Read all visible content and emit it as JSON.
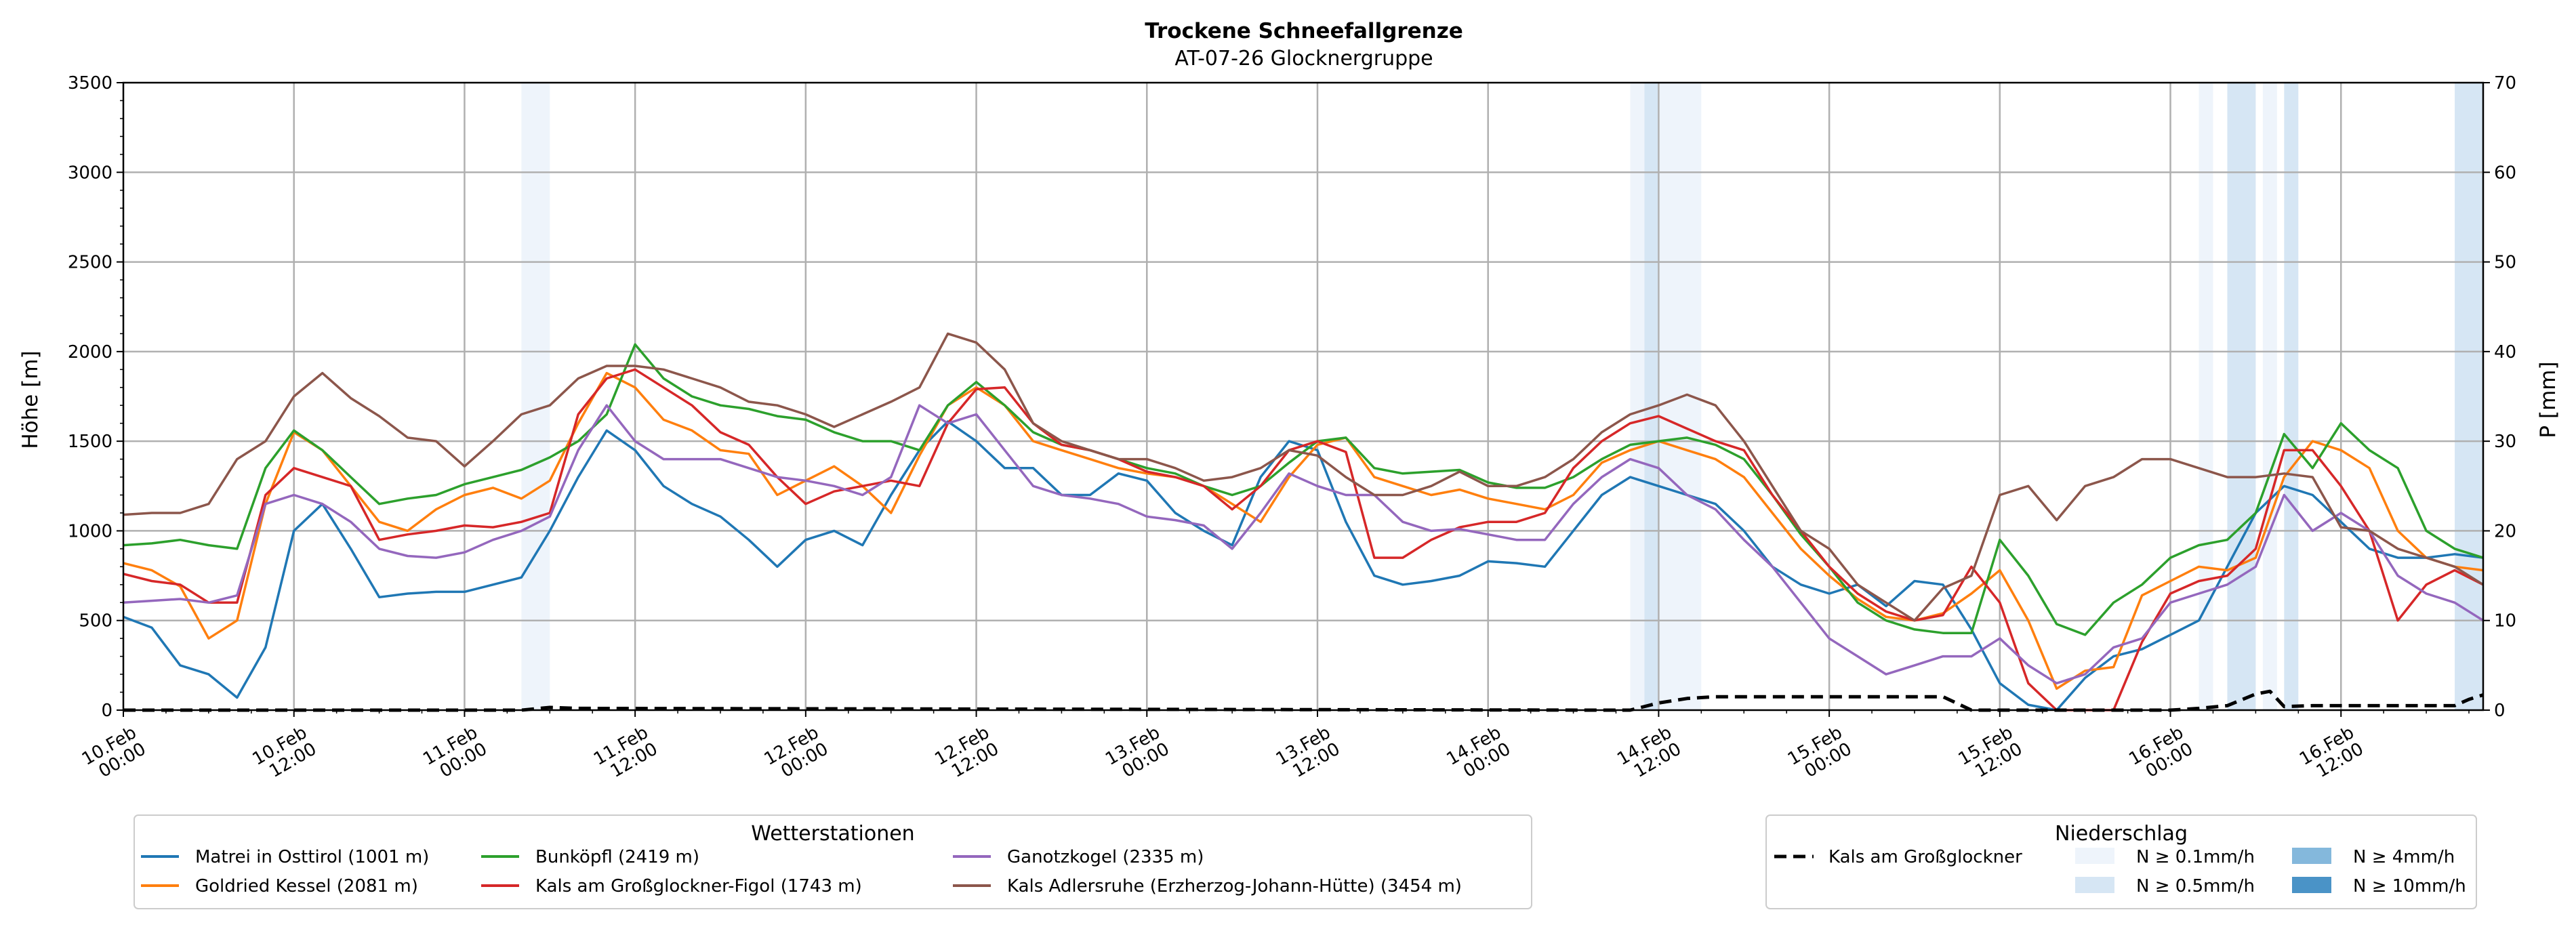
{
  "chart_data": {
    "type": "line",
    "title": "Trockene Schneefallgrenze",
    "subtitle": "AT-07-26 Glocknergruppe",
    "ylabel": "Höhe [m]",
    "y2label": "P [mm]",
    "ylim": [
      0,
      3500
    ],
    "y2lim": [
      0,
      70
    ],
    "yticks": [
      0,
      500,
      1000,
      1500,
      2000,
      2500,
      3000,
      3500
    ],
    "y2ticks": [
      0,
      10,
      20,
      30,
      40,
      50,
      60,
      70
    ],
    "x_range_hours": [
      0,
      166
    ],
    "xticks": [
      {
        "h": 0,
        "l1": "10.Feb",
        "l2": "00:00"
      },
      {
        "h": 12,
        "l1": "10.Feb",
        "l2": "12:00"
      },
      {
        "h": 24,
        "l1": "11.Feb",
        "l2": "00:00"
      },
      {
        "h": 36,
        "l1": "11.Feb",
        "l2": "12:00"
      },
      {
        "h": 48,
        "l1": "12.Feb",
        "l2": "00:00"
      },
      {
        "h": 60,
        "l1": "12.Feb",
        "l2": "12:00"
      },
      {
        "h": 72,
        "l1": "13.Feb",
        "l2": "00:00"
      },
      {
        "h": 84,
        "l1": "13.Feb",
        "l2": "12:00"
      },
      {
        "h": 96,
        "l1": "14.Feb",
        "l2": "00:00"
      },
      {
        "h": 108,
        "l1": "14.Feb",
        "l2": "12:00"
      },
      {
        "h": 120,
        "l1": "15.Feb",
        "l2": "00:00"
      },
      {
        "h": 132,
        "l1": "15.Feb",
        "l2": "12:00"
      },
      {
        "h": 144,
        "l1": "16.Feb",
        "l2": "00:00"
      },
      {
        "h": 156,
        "l1": "16.Feb",
        "l2": "12:00"
      }
    ],
    "precip_bands": [
      {
        "start": 28,
        "end": 30,
        "level": 0
      },
      {
        "start": 106,
        "end": 107,
        "level": 0
      },
      {
        "start": 107,
        "end": 108,
        "level": 1
      },
      {
        "start": 108,
        "end": 111,
        "level": 0
      },
      {
        "start": 146,
        "end": 147,
        "level": 0
      },
      {
        "start": 148,
        "end": 150,
        "level": 1
      },
      {
        "start": 150.5,
        "end": 151.5,
        "level": 0
      },
      {
        "start": 152,
        "end": 153,
        "level": 1
      },
      {
        "start": 164,
        "end": 166,
        "level": 1
      }
    ],
    "precip_colors": [
      "#eef4fb",
      "#d6e6f4",
      "#84b8dc",
      "#4a93c7"
    ],
    "series": [
      {
        "name": "Matrei in Osttirol (1001 m)",
        "color": "#1f77b4",
        "x": [
          0,
          2,
          4,
          6,
          8,
          10,
          12,
          14,
          16,
          18,
          20,
          22,
          24,
          26,
          28,
          30,
          32,
          34,
          36,
          38,
          40,
          42,
          44,
          46,
          48,
          50,
          52,
          54,
          56,
          58,
          60,
          62,
          64,
          66,
          68,
          70,
          72,
          74,
          76,
          78,
          80,
          82,
          84,
          86,
          88,
          90,
          92,
          94,
          96,
          98,
          100,
          102,
          104,
          106,
          108,
          110,
          112,
          114,
          116,
          118,
          120,
          122,
          124,
          126,
          128,
          130,
          132,
          134,
          136,
          138,
          140,
          142,
          144,
          146,
          148,
          150,
          152,
          154,
          156,
          158,
          160,
          162,
          164,
          166
        ],
        "values": [
          520,
          460,
          250,
          200,
          70,
          350,
          1000,
          1150,
          900,
          630,
          650,
          660,
          660,
          700,
          740,
          1000,
          1300,
          1560,
          1450,
          1250,
          1150,
          1080,
          950,
          800,
          950,
          1000,
          920,
          1200,
          1450,
          1610,
          1500,
          1350,
          1350,
          1200,
          1200,
          1320,
          1280,
          1100,
          1000,
          920,
          1300,
          1500,
          1450,
          1050,
          750,
          700,
          720,
          750,
          830,
          820,
          800,
          1000,
          1200,
          1300,
          1250,
          1200,
          1150,
          1000,
          800,
          700,
          650,
          700,
          580,
          720,
          700,
          450,
          150,
          30,
          0,
          180,
          300,
          340,
          420,
          500,
          800,
          1100,
          1250,
          1200,
          1050,
          900,
          850,
          850,
          870,
          850
        ]
      },
      {
        "name": "Goldried Kessel (2081 m)",
        "color": "#ff7f0e",
        "x": [
          0,
          2,
          4,
          6,
          8,
          10,
          12,
          14,
          16,
          18,
          20,
          22,
          24,
          26,
          28,
          30,
          32,
          34,
          36,
          38,
          40,
          42,
          44,
          46,
          48,
          50,
          52,
          54,
          56,
          58,
          60,
          62,
          64,
          66,
          68,
          70,
          72,
          74,
          76,
          78,
          80,
          82,
          84,
          86,
          88,
          90,
          92,
          94,
          96,
          98,
          100,
          102,
          104,
          106,
          108,
          110,
          112,
          114,
          116,
          118,
          120,
          122,
          124,
          126,
          128,
          130,
          132,
          134,
          136,
          138,
          140,
          142,
          144,
          146,
          148,
          150,
          152,
          154,
          156,
          158,
          160,
          162,
          164,
          166
        ],
        "values": [
          820,
          780,
          690,
          400,
          500,
          1150,
          1550,
          1450,
          1250,
          1050,
          1000,
          1120,
          1200,
          1240,
          1180,
          1280,
          1600,
          1880,
          1800,
          1620,
          1560,
          1450,
          1430,
          1200,
          1280,
          1360,
          1250,
          1100,
          1420,
          1700,
          1800,
          1700,
          1500,
          1450,
          1400,
          1350,
          1320,
          1300,
          1250,
          1150,
          1050,
          1300,
          1480,
          1520,
          1300,
          1250,
          1200,
          1230,
          1180,
          1150,
          1120,
          1200,
          1380,
          1450,
          1500,
          1450,
          1400,
          1300,
          1100,
          900,
          750,
          620,
          520,
          500,
          540,
          650,
          780,
          500,
          120,
          220,
          240,
          640,
          720,
          800,
          780,
          850,
          1300,
          1500,
          1450,
          1350,
          1000,
          850,
          800,
          780
        ]
      },
      {
        "name": "Bunköpfl (2419 m)",
        "color": "#2ca02c",
        "x": [
          0,
          2,
          4,
          6,
          8,
          10,
          12,
          14,
          16,
          18,
          20,
          22,
          24,
          26,
          28,
          30,
          32,
          34,
          36,
          38,
          40,
          42,
          44,
          46,
          48,
          50,
          52,
          54,
          56,
          58,
          60,
          62,
          64,
          66,
          68,
          70,
          72,
          74,
          76,
          78,
          80,
          82,
          84,
          86,
          88,
          90,
          92,
          94,
          96,
          98,
          100,
          102,
          104,
          106,
          108,
          110,
          112,
          114,
          116,
          118,
          120,
          122,
          124,
          126,
          128,
          130,
          132,
          134,
          136,
          138,
          140,
          142,
          144,
          146,
          148,
          150,
          152,
          154,
          156,
          158,
          160,
          162,
          164,
          166
        ],
        "values": [
          920,
          930,
          950,
          920,
          900,
          1350,
          1560,
          1450,
          1300,
          1150,
          1180,
          1200,
          1260,
          1300,
          1340,
          1410,
          1500,
          1650,
          2040,
          1850,
          1750,
          1700,
          1680,
          1640,
          1620,
          1550,
          1500,
          1500,
          1450,
          1700,
          1830,
          1700,
          1550,
          1480,
          1450,
          1400,
          1350,
          1320,
          1250,
          1200,
          1250,
          1380,
          1500,
          1520,
          1350,
          1320,
          1330,
          1340,
          1270,
          1240,
          1240,
          1300,
          1400,
          1480,
          1500,
          1520,
          1480,
          1400,
          1200,
          980,
          800,
          600,
          500,
          450,
          430,
          430,
          950,
          750,
          480,
          420,
          600,
          700,
          850,
          920,
          950,
          1100,
          1540,
          1350,
          1600,
          1450,
          1350,
          1000,
          900,
          850
        ]
      },
      {
        "name": "Kals am Großglockner-Figol (1743 m)",
        "color": "#d62728",
        "x": [
          0,
          2,
          4,
          6,
          8,
          10,
          12,
          14,
          16,
          18,
          20,
          22,
          24,
          26,
          28,
          30,
          32,
          34,
          36,
          38,
          40,
          42,
          44,
          46,
          48,
          50,
          52,
          54,
          56,
          58,
          60,
          62,
          64,
          66,
          68,
          70,
          72,
          74,
          76,
          78,
          80,
          82,
          84,
          86,
          88,
          90,
          92,
          94,
          96,
          98,
          100,
          102,
          104,
          106,
          108,
          110,
          112,
          114,
          116,
          118,
          120,
          122,
          124,
          126,
          128,
          130,
          132,
          134,
          136,
          138,
          140,
          142,
          144,
          146,
          148,
          150,
          152,
          154,
          156,
          158,
          160,
          162,
          164,
          166
        ],
        "values": [
          760,
          720,
          700,
          600,
          600,
          1200,
          1350,
          1300,
          1250,
          950,
          980,
          1000,
          1030,
          1020,
          1050,
          1100,
          1650,
          1850,
          1900,
          1800,
          1700,
          1550,
          1480,
          1300,
          1150,
          1220,
          1250,
          1280,
          1250,
          1600,
          1790,
          1800,
          1600,
          1480,
          1450,
          1400,
          1330,
          1300,
          1250,
          1120,
          1250,
          1450,
          1500,
          1440,
          850,
          850,
          950,
          1020,
          1050,
          1050,
          1100,
          1350,
          1500,
          1600,
          1640,
          1570,
          1500,
          1450,
          1200,
          1000,
          800,
          650,
          550,
          500,
          530,
          800,
          600,
          150,
          0,
          0,
          0,
          380,
          650,
          720,
          750,
          900,
          1450,
          1450,
          1250,
          1000,
          500,
          700,
          780,
          700
        ]
      },
      {
        "name": "Ganotzkogel (2335 m)",
        "color": "#9467bd",
        "x": [
          0,
          2,
          4,
          6,
          8,
          10,
          12,
          14,
          16,
          18,
          20,
          22,
          24,
          26,
          28,
          30,
          32,
          34,
          36,
          38,
          40,
          42,
          44,
          46,
          48,
          50,
          52,
          54,
          56,
          58,
          60,
          62,
          64,
          66,
          68,
          70,
          72,
          74,
          76,
          78,
          80,
          82,
          84,
          86,
          88,
          90,
          92,
          94,
          96,
          98,
          100,
          102,
          104,
          106,
          108,
          110,
          112,
          114,
          116,
          118,
          120,
          122,
          124,
          126,
          128,
          130,
          132,
          134,
          136,
          138,
          140,
          142,
          144,
          146,
          148,
          150,
          152,
          154,
          156,
          158,
          160,
          162,
          164,
          166
        ],
        "values": [
          600,
          610,
          620,
          600,
          640,
          1150,
          1200,
          1150,
          1050,
          900,
          860,
          850,
          880,
          950,
          1000,
          1080,
          1450,
          1700,
          1500,
          1400,
          1400,
          1400,
          1350,
          1300,
          1280,
          1250,
          1200,
          1300,
          1700,
          1600,
          1650,
          1450,
          1250,
          1200,
          1180,
          1150,
          1080,
          1060,
          1030,
          900,
          1100,
          1320,
          1250,
          1200,
          1200,
          1050,
          1000,
          1010,
          980,
          950,
          950,
          1150,
          1300,
          1400,
          1350,
          1200,
          1120,
          950,
          800,
          600,
          400,
          300,
          200,
          250,
          300,
          300,
          400,
          250,
          150,
          200,
          350,
          400,
          600,
          650,
          700,
          800,
          1200,
          1000,
          1100,
          1000,
          750,
          650,
          600,
          500
        ]
      },
      {
        "name": "Kals Adlersruhe (Erzherzog-Johann-Hütte) (3454 m)",
        "color": "#8c564b",
        "x": [
          0,
          2,
          4,
          6,
          8,
          10,
          12,
          14,
          16,
          18,
          20,
          22,
          24,
          26,
          28,
          30,
          32,
          34,
          36,
          38,
          40,
          42,
          44,
          46,
          48,
          50,
          52,
          54,
          56,
          58,
          60,
          62,
          64,
          66,
          68,
          70,
          72,
          74,
          76,
          78,
          80,
          82,
          84,
          86,
          88,
          90,
          92,
          94,
          96,
          98,
          100,
          102,
          104,
          106,
          108,
          110,
          112,
          114,
          116,
          118,
          120,
          122,
          124,
          126,
          128,
          130,
          132,
          134,
          136,
          138,
          140,
          142,
          144,
          146,
          148,
          150,
          152,
          154,
          156,
          158,
          160,
          162,
          164,
          166
        ],
        "values": [
          1090,
          1100,
          1100,
          1150,
          1400,
          1500,
          1750,
          1880,
          1740,
          1640,
          1520,
          1500,
          1360,
          1500,
          1650,
          1700,
          1850,
          1920,
          1920,
          1900,
          1850,
          1800,
          1720,
          1700,
          1650,
          1580,
          1650,
          1720,
          1800,
          2100,
          2050,
          1900,
          1600,
          1500,
          1450,
          1400,
          1400,
          1350,
          1280,
          1300,
          1350,
          1450,
          1420,
          1300,
          1200,
          1200,
          1250,
          1330,
          1250,
          1250,
          1300,
          1400,
          1550,
          1650,
          1700,
          1760,
          1700,
          1500,
          1250,
          1000,
          900,
          700,
          600,
          500,
          680,
          750,
          1200,
          1250,
          1060,
          1250,
          1300,
          1400,
          1400,
          1350,
          1300,
          1300,
          1320,
          1300,
          1020,
          1000,
          900,
          850,
          800,
          700
        ]
      },
      {
        "name": "Kals am Großglockner",
        "color": "#000000",
        "dashed": true,
        "axis": "precip",
        "x": [
          0,
          28,
          30,
          32,
          104,
          106,
          108,
          110,
          112,
          120,
          126,
          128,
          130,
          135,
          144,
          146,
          148,
          150,
          151,
          152,
          154,
          156,
          160,
          164,
          165,
          166
        ],
        "values": [
          0,
          0,
          0.3,
          0.2,
          0,
          0,
          0.8,
          1.3,
          1.5,
          1.5,
          1.5,
          1.5,
          0,
          0,
          0,
          0.2,
          0.5,
          1.8,
          2.1,
          0.4,
          0.5,
          0.5,
          0.5,
          0.5,
          1.2,
          1.7
        ]
      }
    ],
    "legend_stations_title": "Wetterstationen",
    "legend_precip_title": "Niederschlag",
    "precip_legend_labels": [
      "N ≥ 0.1mm/h",
      "N ≥ 0.5mm/h",
      "N ≥ 4mm/h",
      "N ≥ 10mm/h"
    ]
  }
}
